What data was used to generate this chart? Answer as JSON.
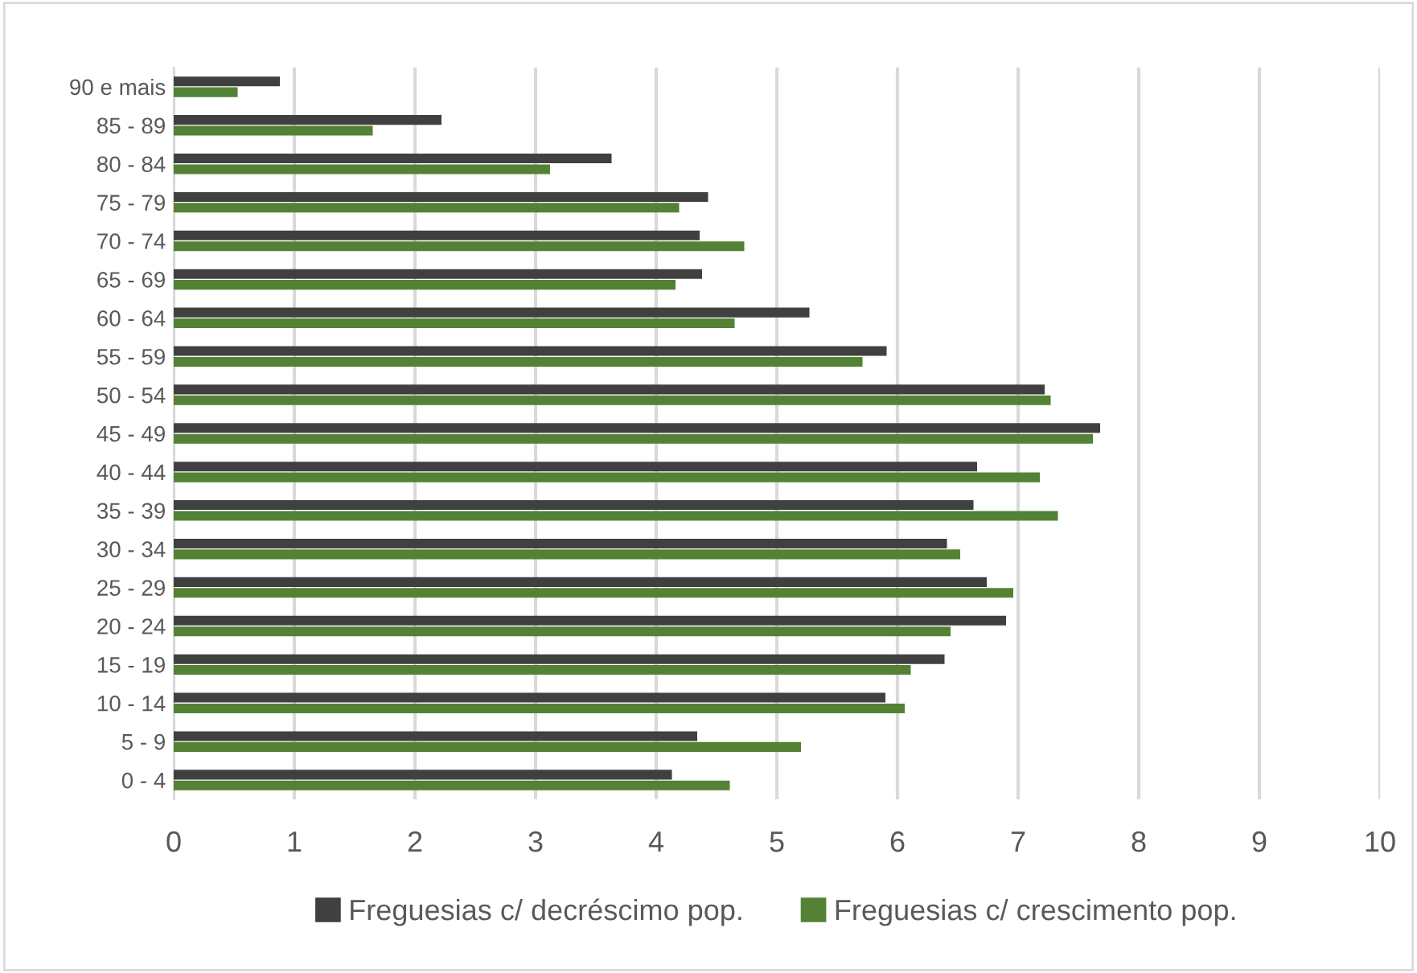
{
  "chart_data": {
    "type": "bar",
    "orientation": "horizontal",
    "categories": [
      "90 e mais",
      "85 - 89",
      "80 - 84",
      "75 - 79",
      "70 - 74",
      "65 - 69",
      "60 - 64",
      "55 - 59",
      "50 - 54",
      "45 - 49",
      "40 - 44",
      "35 - 39",
      "30 - 34",
      "25 - 29",
      "20 - 24",
      "15 - 19",
      "10 - 14",
      "5 - 9",
      "0 - 4"
    ],
    "series": [
      {
        "name": "Freguesias c/ decréscimo pop.",
        "color": "#404040",
        "values": [
          0.88,
          2.22,
          3.63,
          4.43,
          4.36,
          4.38,
          5.27,
          5.91,
          7.22,
          7.68,
          6.66,
          6.63,
          6.41,
          6.74,
          6.9,
          6.39,
          5.9,
          4.34,
          4.13
        ]
      },
      {
        "name": "Freguesias c/ crescimento pop.",
        "color": "#548235",
        "values": [
          0.53,
          1.65,
          3.12,
          4.19,
          4.73,
          4.16,
          4.65,
          5.71,
          7.27,
          7.62,
          7.18,
          7.33,
          6.52,
          6.96,
          6.44,
          6.11,
          6.06,
          5.2,
          4.61
        ]
      }
    ],
    "xlim": [
      0,
      10
    ],
    "xticks": [
      0,
      1,
      2,
      3,
      4,
      5,
      6,
      7,
      8,
      9,
      10
    ],
    "grid": "x",
    "legend": "bottom"
  }
}
